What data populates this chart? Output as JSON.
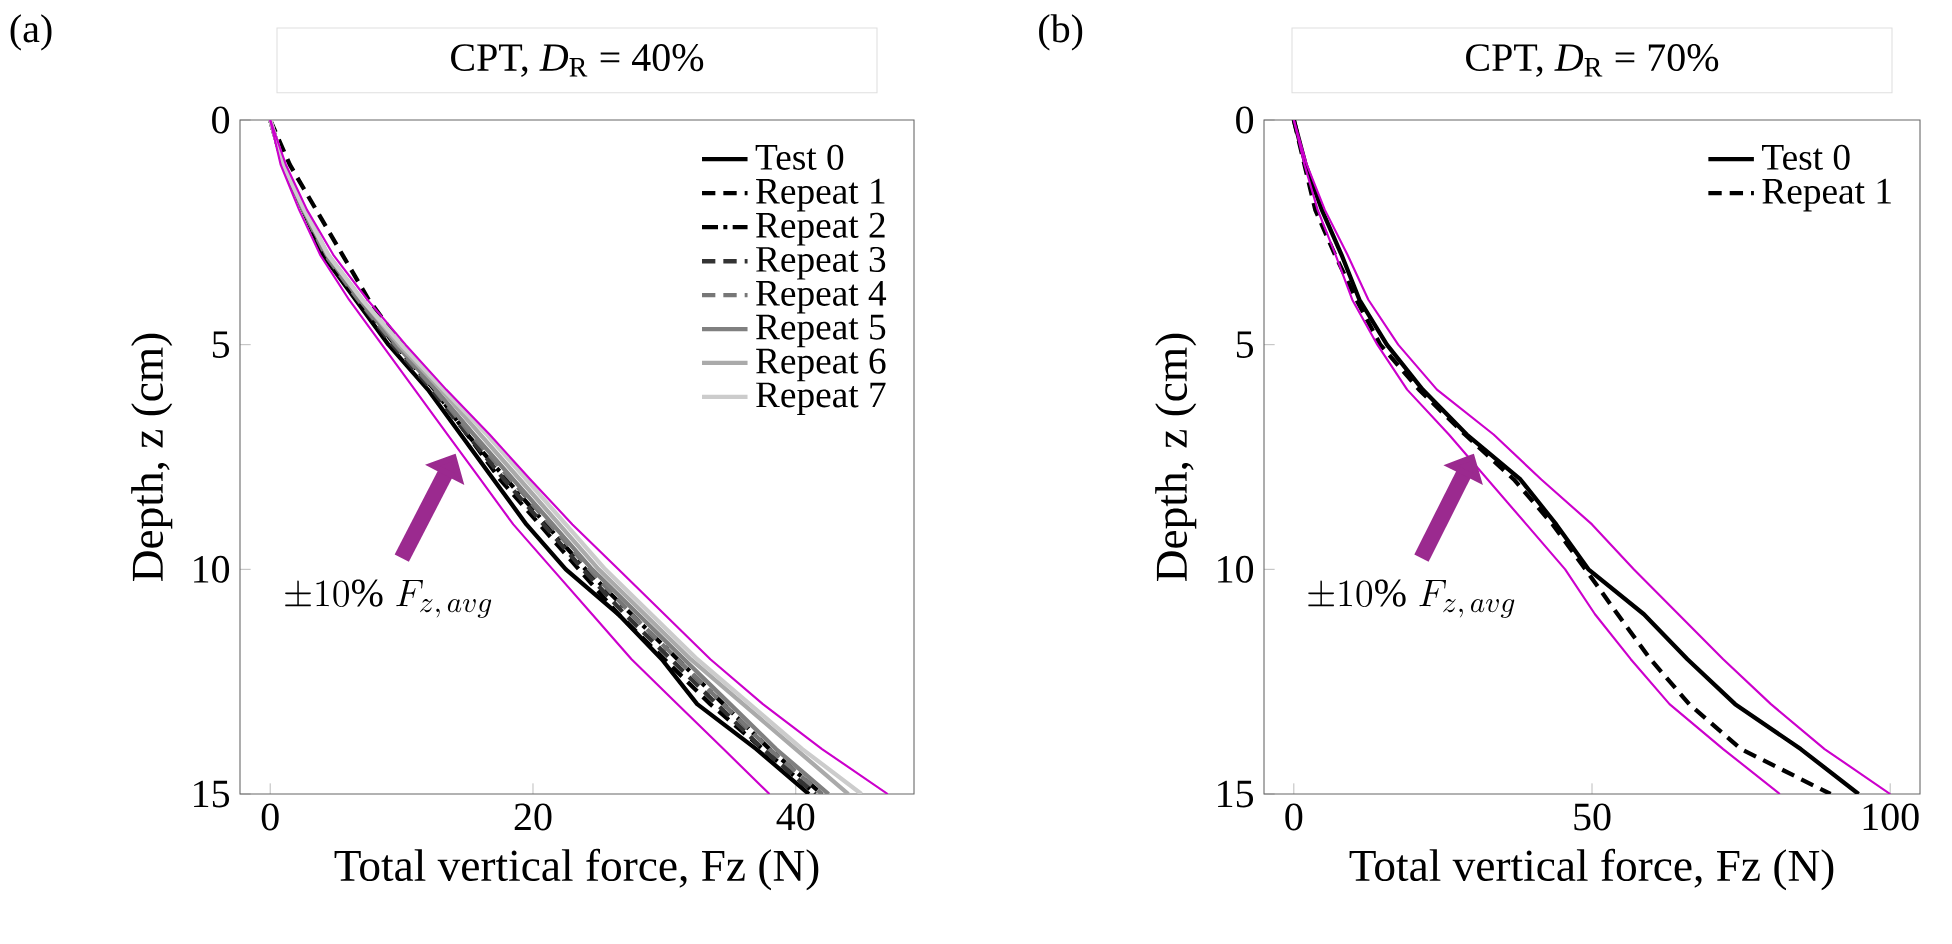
{
  "chart_data": [
    {
      "type": "line",
      "title": "CPT, *D*$_{R}$ = 40%",
      "xlabel": "Total vertical force, Fz (N)",
      "ylabel": "Depth, z (cm)",
      "xlim": [
        -2.3,
        49
      ],
      "ylim": [
        15,
        0
      ],
      "xticks": [
        0,
        20,
        40
      ],
      "yticks": [
        0,
        5,
        10,
        15
      ],
      "legend": "top right",
      "annotations": [
        "(a)",
        "\\pm 10\\% \\; F_{z,\\, avg}"
      ],
      "series": [
        {
          "name": "Test 0",
          "color": "#000000",
          "line_style": "solid",
          "x": [
            0,
            1,
            2.5,
            4,
            6.5,
            9,
            12,
            14.5,
            17,
            19.5,
            22.5,
            26.5,
            29.8,
            32.5,
            37,
            41
          ],
          "values": [
            0,
            1,
            2,
            3,
            4,
            5,
            6,
            7,
            8,
            9,
            10,
            11,
            12,
            13,
            14,
            15
          ]
        },
        {
          "name": "Repeat 1",
          "color": "#000000",
          "line_style": "dashed",
          "x": [
            0,
            1.5,
            3.5,
            5.5,
            7.5,
            10,
            12.5,
            15,
            17.5,
            20.5,
            23.5,
            26.5,
            30,
            33.5,
            37.5,
            41.5
          ],
          "values": [
            0,
            1,
            2,
            3,
            4,
            5,
            6,
            7,
            8,
            9,
            10,
            11,
            12,
            13,
            14,
            15
          ]
        },
        {
          "name": "Repeat 2",
          "color": "#000000",
          "line_style": "dashdot",
          "x": [
            0,
            1,
            2.5,
            4.2,
            6.8,
            9.5,
            12.5,
            15,
            18,
            21,
            24,
            27.5,
            31,
            34.5,
            38,
            42
          ],
          "values": [
            0,
            1,
            2,
            3,
            4,
            5,
            6,
            7,
            8,
            9,
            10,
            11,
            12,
            13,
            14,
            15
          ]
        },
        {
          "name": "Repeat 3",
          "color": "#333333",
          "line_style": "dashed",
          "x": [
            0,
            1,
            2.5,
            4.2,
            6.7,
            9.3,
            12.3,
            15,
            17.8,
            20.8,
            23.8,
            27,
            30.5,
            34,
            37.5,
            41.5
          ],
          "values": [
            0,
            1,
            2,
            3,
            4,
            5,
            6,
            7,
            8,
            9,
            10,
            11,
            12,
            13,
            14,
            15
          ]
        },
        {
          "name": "Repeat 4",
          "color": "#777777",
          "line_style": "dashed",
          "x": [
            0,
            1,
            2.5,
            4.2,
            6.7,
            9.5,
            12.5,
            15.3,
            18.3,
            21.3,
            24.3,
            27.5,
            31,
            34.5,
            38,
            42
          ],
          "values": [
            0,
            1,
            2,
            3,
            4,
            5,
            6,
            7,
            8,
            9,
            10,
            11,
            12,
            13,
            14,
            15
          ]
        },
        {
          "name": "Repeat 5",
          "color": "#808080",
          "line_style": "solid",
          "x": [
            0,
            1,
            2.5,
            4.3,
            6.8,
            9.6,
            12.6,
            15.5,
            18.5,
            21.5,
            24.5,
            28,
            31.5,
            35,
            38.5,
            42.5
          ],
          "values": [
            0,
            1,
            2,
            3,
            4,
            5,
            6,
            7,
            8,
            9,
            10,
            11,
            12,
            13,
            14,
            15
          ]
        },
        {
          "name": "Repeat 6",
          "color": "#aaaaaa",
          "line_style": "solid",
          "x": [
            0,
            1,
            2.6,
            4.4,
            7,
            9.8,
            13,
            16,
            19,
            22,
            25,
            28.5,
            32,
            36,
            40,
            44
          ],
          "values": [
            0,
            1,
            2,
            3,
            4,
            5,
            6,
            7,
            8,
            9,
            10,
            11,
            12,
            13,
            14,
            15
          ]
        },
        {
          "name": "Repeat 7",
          "color": "#cccccc",
          "line_style": "solid",
          "x": [
            0,
            1,
            2.6,
            4.4,
            7,
            10,
            13.2,
            16.5,
            19.5,
            22.5,
            25.5,
            29,
            32.5,
            36.5,
            40.5,
            45
          ],
          "values": [
            0,
            1,
            2,
            3,
            4,
            5,
            6,
            7,
            8,
            9,
            10,
            11,
            12,
            13,
            14,
            15
          ]
        },
        {
          "color": "#cc00cc",
          "line_style": "solid",
          "x": [
            0,
            0.8,
            2.2,
            3.8,
            6,
            8.5,
            11,
            13.5,
            16,
            18.5,
            21.5,
            24.5,
            27.5,
            31,
            34.5,
            38
          ],
          "values": [
            0,
            1,
            2,
            3,
            4,
            5,
            6,
            7,
            8,
            9,
            10,
            11,
            12,
            13,
            14,
            15
          ]
        },
        {
          "color": "#cc00cc",
          "line_style": "solid",
          "x": [
            0,
            1.2,
            2.8,
            4.8,
            7.4,
            10.3,
            13.4,
            16.7,
            19.8,
            23,
            26.5,
            30,
            33.5,
            37.5,
            42,
            47
          ],
          "values": [
            0,
            1,
            2,
            3,
            4,
            5,
            6,
            7,
            8,
            9,
            10,
            11,
            12,
            13,
            14,
            15
          ]
        }
      ]
    },
    {
      "type": "line",
      "title": "CPT, *D*$_{R}$ = 70%",
      "xlabel": "Total vertical force, Fz (N)",
      "ylabel": "Depth, z (cm)",
      "xlim": [
        -5,
        105
      ],
      "ylim": [
        15,
        0
      ],
      "xticks": [
        0,
        50,
        100
      ],
      "yticks": [
        0,
        5,
        10,
        15
      ],
      "legend": "top right",
      "annotations": [
        "(b)",
        "\\pm 10\\% \\; F_{z,\\, avg}"
      ],
      "series": [
        {
          "name": "Test 0",
          "color": "#000000",
          "line_style": "solid",
          "x": [
            0,
            2,
            4.7,
            8,
            11,
            15.6,
            21.6,
            29,
            38,
            44,
            49.4,
            58.7,
            66,
            74,
            85,
            94.7
          ],
          "values": [
            0,
            1,
            2,
            3,
            4,
            5,
            6,
            7,
            8,
            9,
            10,
            11,
            12,
            13,
            14,
            15
          ]
        },
        {
          "name": "Repeat 1",
          "color": "#000000",
          "line_style": "dashed",
          "x": [
            0,
            1.8,
            3.6,
            6.9,
            10.5,
            14.5,
            21,
            28.7,
            36.9,
            43.4,
            48.9,
            54.3,
            59.8,
            66.3,
            75,
            90
          ],
          "values": [
            0,
            1,
            2,
            3,
            4,
            5,
            6,
            7,
            8,
            9,
            10,
            11,
            12,
            13,
            14,
            15
          ]
        },
        {
          "color": "#cc00cc",
          "line_style": "solid",
          "x": [
            0,
            1.8,
            4,
            7,
            9.8,
            14,
            19,
            26,
            32.5,
            39,
            45.5,
            50.5,
            56.5,
            63,
            72,
            81.5
          ],
          "values": [
            0,
            1,
            2,
            3,
            4,
            5,
            6,
            7,
            8,
            9,
            10,
            11,
            12,
            13,
            14,
            15
          ]
        },
        {
          "color": "#cc00cc",
          "line_style": "solid",
          "x": [
            0,
            2.2,
            5.2,
            9,
            12.5,
            17.5,
            24,
            33.5,
            41.5,
            50,
            57,
            64.5,
            72,
            80,
            89,
            100
          ],
          "values": [
            0,
            1,
            2,
            3,
            4,
            5,
            6,
            7,
            8,
            9,
            10,
            11,
            12,
            13,
            14,
            15
          ]
        }
      ]
    }
  ]
}
